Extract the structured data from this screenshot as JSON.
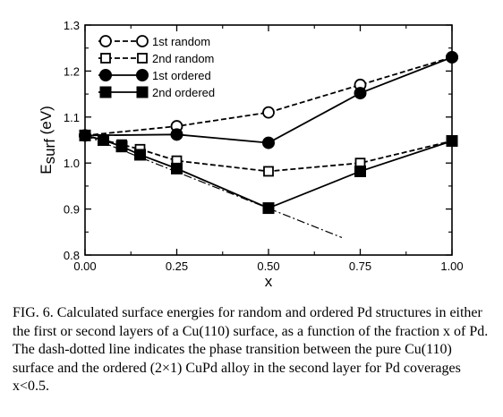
{
  "chart_data": {
    "type": "line",
    "xlabel": "x",
    "ylabel": "E_surf (eV)",
    "ylabel_main": "E",
    "ylabel_sub": "surf",
    "ylabel_unit": " (eV)",
    "xlim": [
      0.0,
      1.0
    ],
    "ylim": [
      0.8,
      1.3
    ],
    "xticks": [
      0.0,
      0.25,
      0.5,
      0.75,
      1.0
    ],
    "xtick_labels": [
      "0.00",
      "0.25",
      "0.50",
      "0.75",
      "1.00"
    ],
    "yticks": [
      0.8,
      0.9,
      1.0,
      1.1,
      1.2,
      1.3
    ],
    "ytick_labels": [
      "0.8",
      "0.9",
      "1.0",
      "1.1",
      "1.2",
      "1.3"
    ],
    "grid": false,
    "legend_position": "top-left",
    "series": [
      {
        "name": "1st random",
        "marker": "open-circle",
        "line": "dashed",
        "x": [
          0.0,
          0.25,
          0.5,
          0.75,
          1.0
        ],
        "y": [
          1.06,
          1.08,
          1.11,
          1.17,
          1.23
        ]
      },
      {
        "name": "2nd random",
        "marker": "open-square",
        "line": "dashed",
        "x": [
          0.0,
          0.05,
          0.1,
          0.15,
          0.25,
          0.5,
          0.75,
          1.0
        ],
        "y": [
          1.06,
          1.05,
          1.04,
          1.03,
          1.005,
          0.982,
          1.0,
          1.048
        ]
      },
      {
        "name": "1st ordered",
        "marker": "filled-circle",
        "line": "solid",
        "x": [
          0.0,
          0.25,
          0.5,
          0.75,
          1.0
        ],
        "y": [
          1.06,
          1.062,
          1.044,
          1.152,
          1.23
        ]
      },
      {
        "name": "2nd ordered",
        "marker": "filled-square",
        "line": "solid",
        "x": [
          0.0,
          0.05,
          0.1,
          0.15,
          0.25,
          0.5,
          0.75,
          1.0
        ],
        "y": [
          1.06,
          1.05,
          1.036,
          1.018,
          0.988,
          0.902,
          0.982,
          1.048
        ]
      },
      {
        "marker": "none",
        "line": "dash-dot",
        "x": [
          0.0,
          0.7
        ],
        "y": [
          1.06,
          0.838
        ]
      }
    ]
  },
  "caption": "FIG. 6. Calculated surface energies for random and ordered Pd structures in either the first or second layers of a Cu(110) surface, as a function of the fraction x of Pd. The dash-dotted line indicates the phase transition between the pure Cu(110) surface and the ordered (2×1) CuPd alloy in the second layer for Pd coverages x<0.5."
}
